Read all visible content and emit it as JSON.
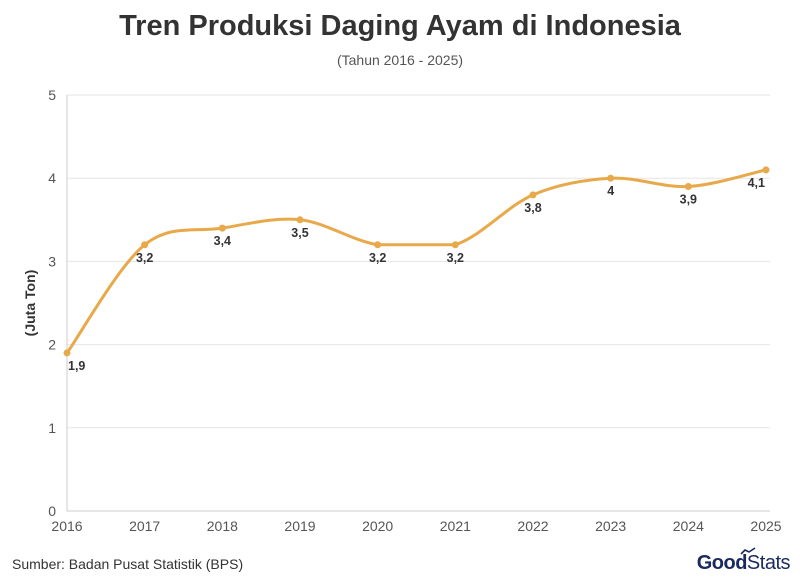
{
  "title": "Tren Produksi Daging Ayam di Indonesia",
  "subtitle": "(Tahun 2016 - 2025)",
  "source": "Sumber: Badan Pusat Statistik (BPS)",
  "brand": {
    "part1": "Good",
    "part2": "Stats"
  },
  "colors": {
    "line": "#e8a94a",
    "grid": "#e6e6e6",
    "axis": "#cccccc",
    "text": "#333333"
  },
  "chart_data": {
    "type": "line",
    "ylabel": "(Juta Ton)",
    "xlabel": "",
    "ylim": [
      0,
      5
    ],
    "yticks": [
      "0",
      "1",
      "2",
      "3",
      "4",
      "5"
    ],
    "x": [
      "2016",
      "2017",
      "2018",
      "2019",
      "2020",
      "2021",
      "2022",
      "2023",
      "2024",
      "2025"
    ],
    "values": [
      1.9,
      3.2,
      3.4,
      3.5,
      3.2,
      3.2,
      3.8,
      4.0,
      3.9,
      4.1
    ],
    "data_labels": [
      "1,9",
      "3,2",
      "3,4",
      "3,5",
      "3,2",
      "3,2",
      "3,8",
      "4",
      "3,9",
      "4,1"
    ],
    "grid": true,
    "smooth": true
  }
}
